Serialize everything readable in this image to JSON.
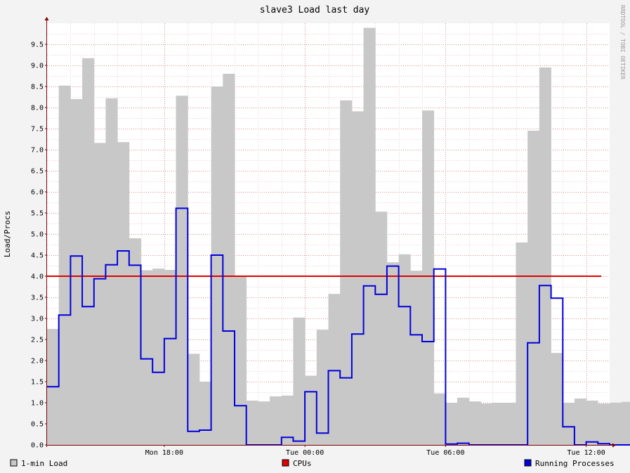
{
  "chart_data": {
    "type": "area",
    "title": "slave3 Load last day",
    "ylabel": "Load/Procs",
    "watermark": "RRDTOOL / TOBI OETIKER",
    "ylim": [
      0,
      10
    ],
    "y_ticks": [
      "0.0",
      "0.5",
      "1.0",
      "1.5",
      "2.0",
      "2.5",
      "3.0",
      "3.5",
      "4.0",
      "4.5",
      "5.0",
      "5.5",
      "6.0",
      "6.5",
      "7.0",
      "7.5",
      "8.0",
      "8.5",
      "9.0",
      "9.5"
    ],
    "x_ticks": [
      {
        "label": "Mon 18:00",
        "hour": 5
      },
      {
        "label": "Tue 00:00",
        "hour": 11
      },
      {
        "label": "Tue 06:00",
        "hour": 17
      },
      {
        "label": "Tue 12:00",
        "hour": 23
      }
    ],
    "x_range_hours": [
      0,
      24
    ],
    "step_hours": 0.25,
    "colors": {
      "background": "#f3f3f3",
      "canvas": "#ffffff",
      "grid_minor": "#e8b8b8",
      "grid_major": "#d98080",
      "load": "#c8c8c8",
      "cpus": "#e00000",
      "procs": "#0000dd",
      "axis": "#800000"
    },
    "series": [
      {
        "name": "1-min Load",
        "legend": "1-min Load",
        "style": "area",
        "values": [
          2.75,
          2.75,
          8.52,
          8.52,
          8.2,
          8.2,
          9.17,
          9.17,
          7.16,
          7.16,
          8.22,
          8.22,
          7.18,
          7.18,
          4.9,
          4.9,
          4.14,
          4.14,
          4.18,
          4.18,
          4.15,
          4.15,
          8.28,
          8.28,
          2.16,
          2.16,
          1.5,
          1.5,
          8.5,
          8.5,
          8.8,
          8.8,
          4.0,
          4.0,
          1.05,
          1.05,
          1.03,
          1.03,
          1.15,
          1.15,
          1.17,
          1.17,
          3.02,
          3.02,
          1.64,
          1.64,
          2.73,
          2.73,
          3.58,
          3.58,
          8.17,
          8.17,
          7.91,
          7.91,
          9.89,
          9.89,
          5.53,
          5.53,
          4.33,
          4.33,
          4.52,
          4.52,
          4.13,
          4.13,
          7.93,
          7.93,
          1.22,
          1.22,
          1.0,
          1.0,
          1.12,
          1.12,
          1.03,
          1.03,
          0.98,
          0.98,
          1.0,
          1.0,
          1.0,
          1.0,
          4.8,
          4.8,
          7.45,
          7.45,
          8.95,
          8.95,
          2.18,
          2.18,
          1.0,
          1.0,
          1.1,
          1.1,
          1.05,
          1.05,
          0.98,
          0.98,
          1.0,
          1.0,
          1.02,
          1.02,
          1.08,
          1.08
        ]
      },
      {
        "name": "CPUs",
        "legend": "CPUs",
        "style": "line",
        "values": [
          4.0
        ]
      },
      {
        "name": "Running Processes",
        "legend": "Running Processes",
        "style": "step",
        "values": [
          1.38,
          3.08,
          4.48,
          3.28,
          3.94,
          4.27,
          4.6,
          4.26,
          2.04,
          1.72,
          2.52,
          5.61,
          0.32,
          0.35,
          4.5,
          2.7,
          0.93,
          0.0,
          0.0,
          0.0,
          0.18,
          0.09,
          1.26,
          0.28,
          1.76,
          1.59,
          2.63,
          3.77,
          3.57,
          4.24,
          3.28,
          2.61,
          2.45,
          4.17,
          0.02,
          0.04,
          0.0,
          0.0,
          0.0,
          0.0,
          0.0,
          2.42,
          3.78,
          3.48,
          0.43,
          0.0,
          0.07,
          0.03,
          0.0,
          0.0,
          0.08,
          0.08
        ]
      }
    ],
    "procs_step_hours": 0.5
  }
}
